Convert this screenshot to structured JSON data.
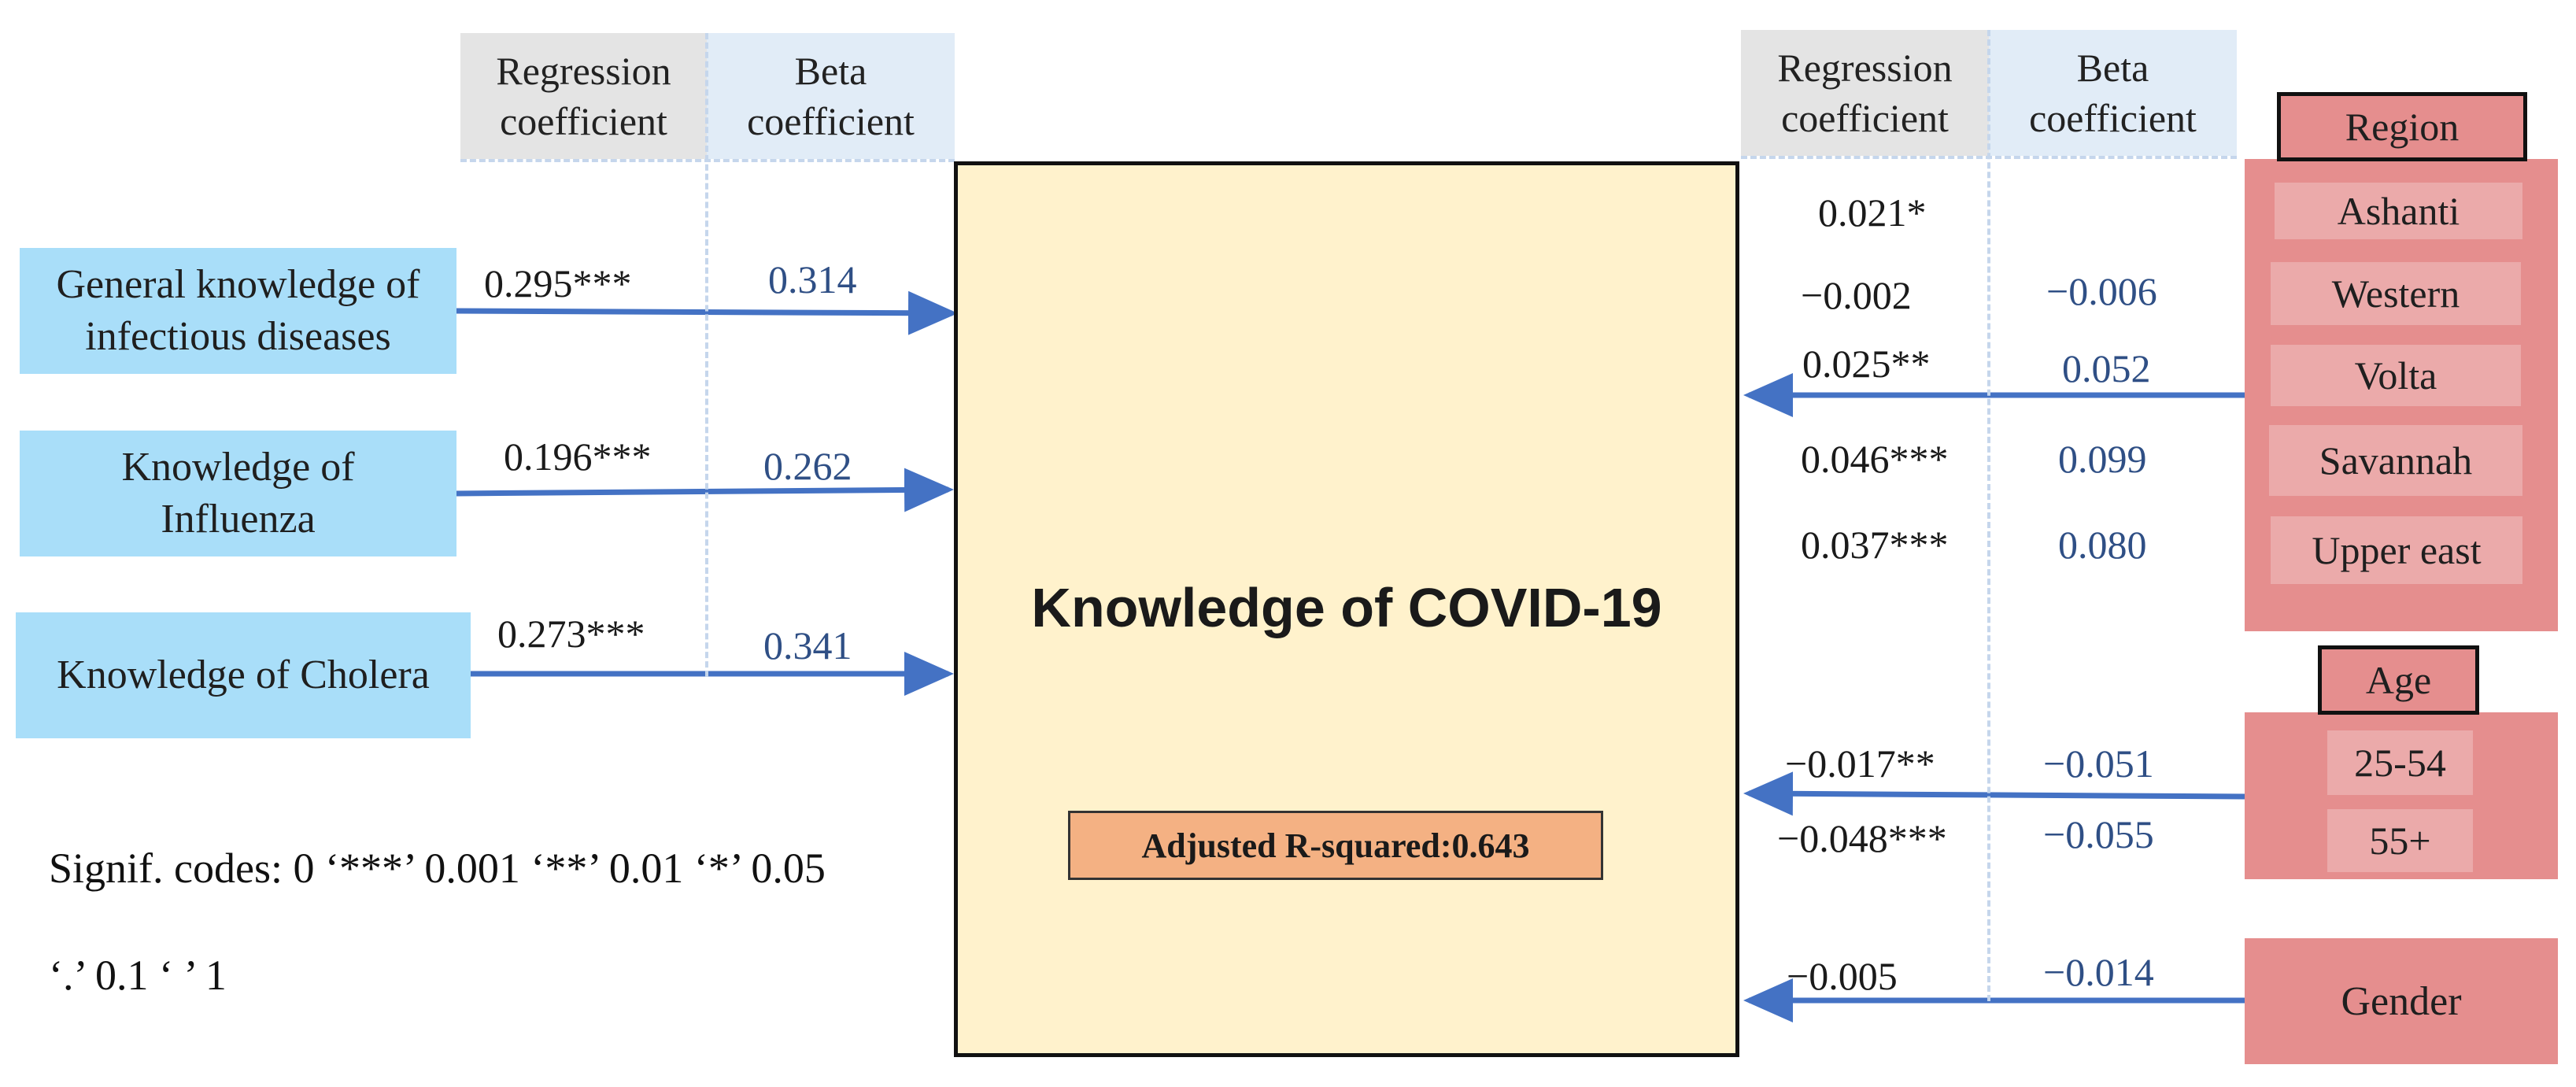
{
  "headers": {
    "left_reg": "Regression\ncoefficient",
    "left_beta": "Beta\ncoefficient",
    "right_reg": "Regression\ncoefficient",
    "right_beta": "Beta\ncoefficient"
  },
  "outcome": {
    "title": "Knowledge of COVID-19",
    "adjusted_r2": "Adjusted R-squared:0.643"
  },
  "predictors": [
    {
      "label": "General knowledge of\ninfectious diseases",
      "reg": "0.295***",
      "beta": "0.314"
    },
    {
      "label": "Knowledge of\nInfluenza",
      "reg": "0.196***",
      "beta": "0.262"
    },
    {
      "label": "Knowledge of Cholera",
      "reg": "0.273***",
      "beta": "0.341"
    }
  ],
  "region": {
    "title": "Region",
    "levels": [
      {
        "label": "Ashanti",
        "reg": "0.021*",
        "beta": ""
      },
      {
        "label": "Western",
        "reg": "−0.002",
        "beta": "−0.006"
      },
      {
        "label": "Volta",
        "reg": "0.025**",
        "beta": "0.052"
      },
      {
        "label": "Savannah",
        "reg": "0.046***",
        "beta": "0.099"
      },
      {
        "label": "Upper east",
        "reg": "0.037***",
        "beta": "0.080"
      }
    ]
  },
  "age": {
    "title": "Age",
    "levels": [
      {
        "label": "25-54",
        "reg": "−0.017**",
        "beta": "−0.051"
      },
      {
        "label": "55+",
        "reg": "−0.048***",
        "beta": "−0.055"
      }
    ]
  },
  "gender": {
    "label": "Gender",
    "reg": "−0.005",
    "beta": "−0.014"
  },
  "signif": {
    "line1": "Signif. codes: 0 ‘***’ 0.001 ‘**’ 0.01 ‘*’ 0.05",
    "line2": "‘.’ 0.1 ‘ ’ 1"
  },
  "colors": {
    "predictor_fill": "#a9def9",
    "outcome_fill": "#fff2cc",
    "r2_fill": "#f4b183",
    "category_fill": "#e58e8e",
    "level_fill": "#ebaaaa",
    "arrow": "#4472c4",
    "beta_text": "#2f4f85"
  }
}
